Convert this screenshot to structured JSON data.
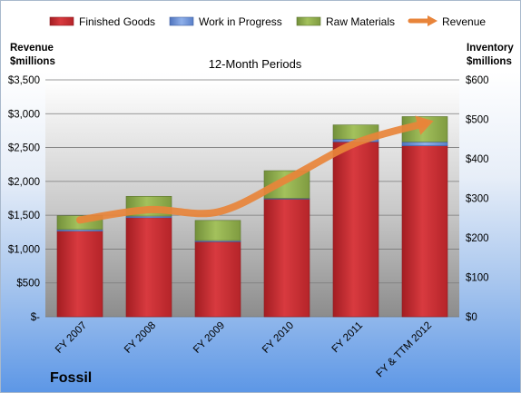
{
  "chart_data": {
    "type": "bar",
    "stacked": true,
    "title": "12-Month Periods",
    "brand": "Fossil",
    "categories": [
      "FY 2007",
      "FY 2008",
      "FY 2009",
      "FY 2010",
      "FY 2011",
      "FY & TTM 2012"
    ],
    "left_axis": {
      "label_line1": "Revenue",
      "label_line2": "$millions",
      "ylim": [
        0,
        3500
      ],
      "ticks": [
        0,
        500,
        1000,
        1500,
        2000,
        2500,
        3000,
        3500
      ],
      "tick_labels": [
        "$-",
        "$500",
        "$1,000",
        "$1,500",
        "$2,000",
        "$2,500",
        "$3,000",
        "$3,500"
      ]
    },
    "right_axis": {
      "label_line1": "Inventory",
      "label_line2": "$millions",
      "ylim": [
        0,
        600
      ],
      "ticks": [
        0,
        100,
        200,
        300,
        400,
        500,
        600
      ],
      "tick_labels": [
        "$0",
        "$100",
        "$200",
        "$300",
        "$400",
        "$500",
        "$600"
      ]
    },
    "series": [
      {
        "name": "Finished Goods",
        "axis": "right",
        "kind": "bar",
        "color": "#c0282d",
        "values": [
          217,
          251,
          190,
          298,
          443,
          433
        ]
      },
      {
        "name": "Work in Progress",
        "axis": "right",
        "kind": "bar",
        "color": "#6b8fd6",
        "values": [
          4,
          4,
          3,
          2,
          7,
          10
        ]
      },
      {
        "name": "Raw Materials",
        "axis": "right",
        "kind": "bar",
        "color": "#8fae4a",
        "values": [
          35,
          50,
          51,
          70,
          36,
          64
        ]
      },
      {
        "name": "Revenue",
        "axis": "left",
        "kind": "line",
        "color": "#e8843a",
        "values": [
          1430,
          1583,
          1548,
          2031,
          2567,
          2857
        ]
      }
    ],
    "grid": true,
    "legend_position": "top"
  }
}
